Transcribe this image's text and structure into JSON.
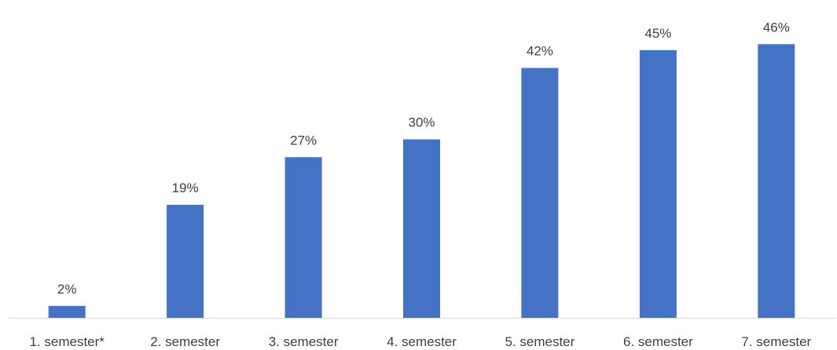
{
  "chart_data": {
    "type": "bar",
    "categories": [
      "1. semester*",
      "2. semester",
      "3. semester",
      "4. semester",
      "5. semester",
      "6. semester",
      "7. semester"
    ],
    "values": [
      2,
      19,
      27,
      30,
      42,
      45,
      46
    ],
    "value_labels": [
      "2%",
      "19%",
      "27%",
      "30%",
      "42%",
      "45%",
      "46%"
    ],
    "unit": "%",
    "title": "",
    "xlabel": "",
    "ylabel": "",
    "ylim": [
      0,
      50
    ],
    "grid": false,
    "legend": "none",
    "colors": {
      "bar": "#4472c4",
      "axis": "#d9d9d9",
      "text": "#404040"
    }
  }
}
